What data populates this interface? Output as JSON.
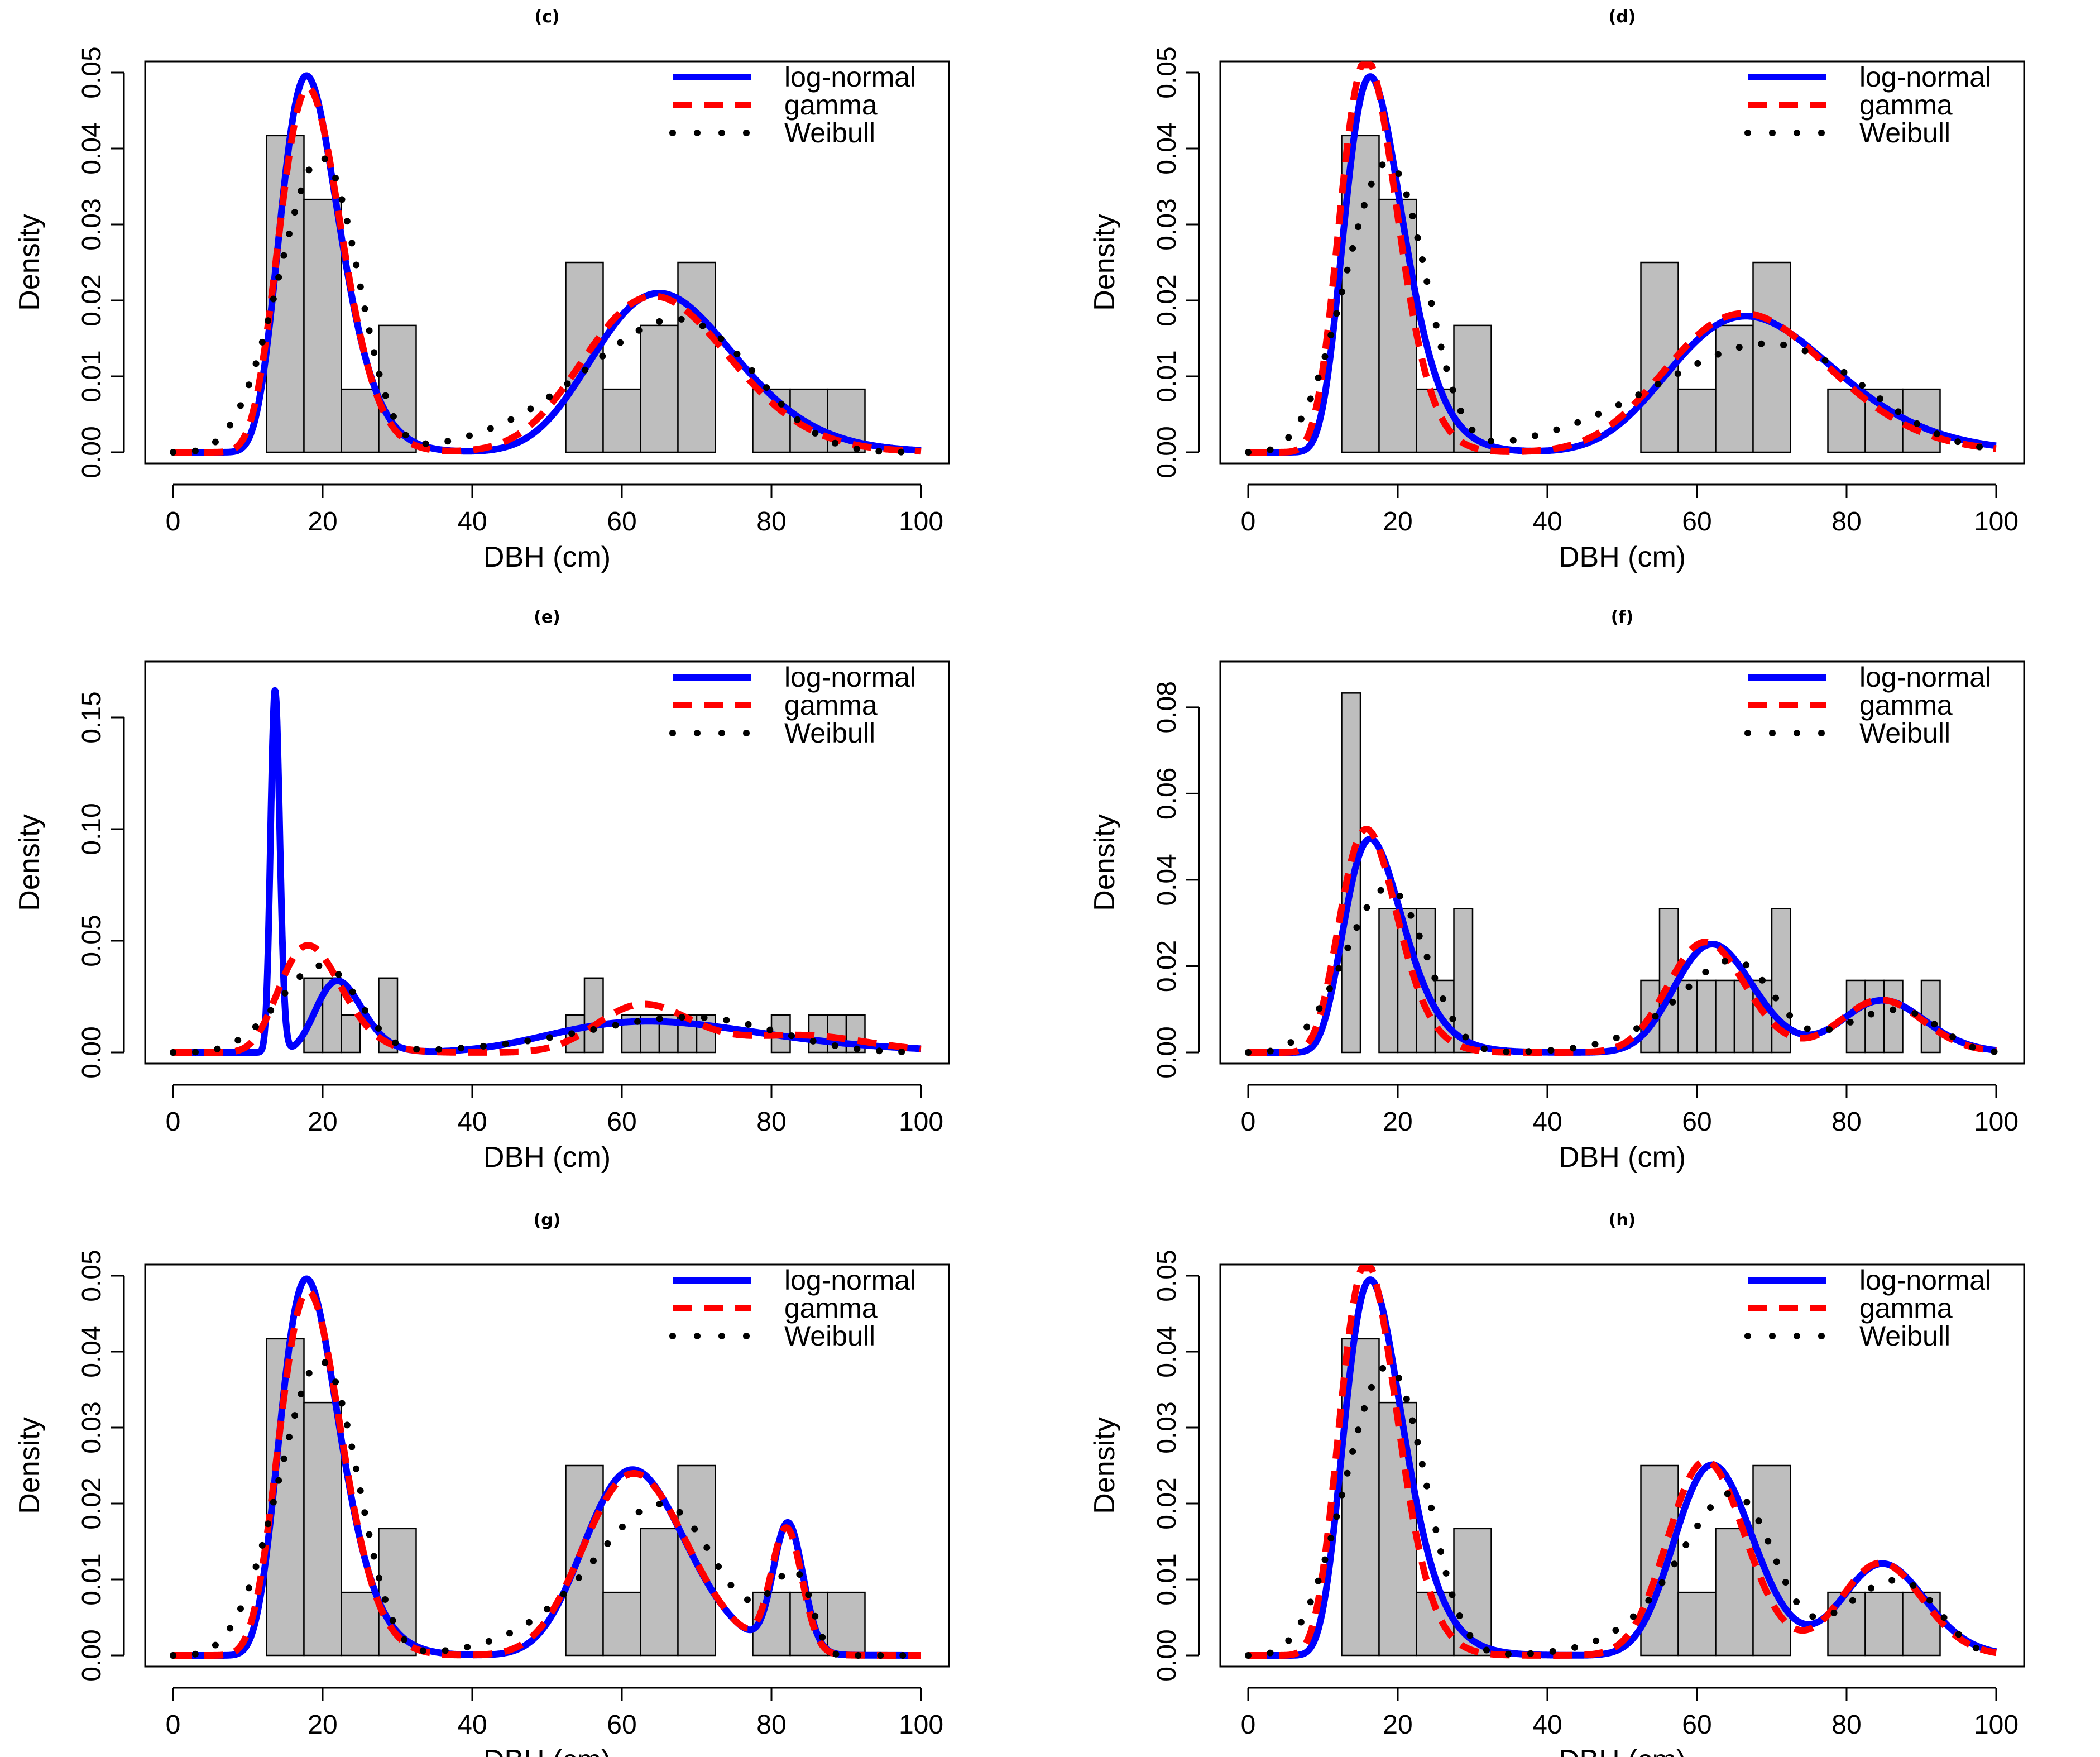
{
  "chart_data": [
    {
      "panel": "c",
      "type": "histogram-with-density-curves",
      "title": "(c)",
      "xlabel": "DBH (cm)",
      "ylabel": "Density",
      "xlim": [
        0,
        100
      ],
      "ylim": [
        0,
        0.05
      ],
      "xticks": [
        "0",
        "20",
        "40",
        "60",
        "80",
        "100"
      ],
      "yticks": [
        "0.00",
        "0.01",
        "0.02",
        "0.03",
        "0.04",
        "0.05"
      ],
      "bins": [
        [
          12.5,
          17.5,
          0.0417
        ],
        [
          17.5,
          22.5,
          0.0333
        ],
        [
          22.5,
          27.5,
          0.0083
        ],
        [
          27.5,
          32.5,
          0.0167
        ],
        [
          52.5,
          57.5,
          0.025
        ],
        [
          57.5,
          62.5,
          0.0083
        ],
        [
          62.5,
          67.5,
          0.0167
        ],
        [
          67.5,
          72.5,
          0.025
        ],
        [
          77.5,
          82.5,
          0.0083
        ],
        [
          82.5,
          87.5,
          0.0083
        ],
        [
          87.5,
          92.5,
          0.0083
        ]
      ],
      "series": [
        {
          "name": "log-normal",
          "components": [
            {
              "w": 0.5,
              "dist": "lognormal",
              "mu": 2.93,
              "sigma": 0.22
            },
            {
              "w": 0.5,
              "dist": "lognormal",
              "mu": 4.195,
              "sigma": 0.145
            }
          ]
        },
        {
          "name": "gamma",
          "components": [
            {
              "w": 0.5,
              "dist": "gamma",
              "k": 20,
              "theta": 0.95
            },
            {
              "w": 0.5,
              "dist": "gamma",
              "k": 45,
              "theta": 1.46
            }
          ]
        },
        {
          "name": "Weibull",
          "components": [
            {
              "w": 0.5,
              "dist": "weibull",
              "k": 4.3,
              "lambda": 21
            },
            {
              "w": 0.5,
              "dist": "weibull",
              "k": 6.5,
              "lambda": 69
            }
          ]
        }
      ],
      "legend": [
        "log-normal",
        "gamma",
        "Weibull"
      ]
    },
    {
      "panel": "d",
      "type": "histogram-with-density-curves",
      "title": "(d)",
      "xlabel": "DBH (cm)",
      "ylabel": "Density",
      "xlim": [
        0,
        100
      ],
      "ylim": [
        0,
        0.05
      ],
      "xticks": [
        "0",
        "20",
        "40",
        "60",
        "80",
        "100"
      ],
      "yticks": [
        "0.00",
        "0.01",
        "0.02",
        "0.03",
        "0.04",
        "0.05"
      ],
      "bins": [
        [
          12.5,
          17.5,
          0.0417
        ],
        [
          17.5,
          22.5,
          0.0333
        ],
        [
          22.5,
          27.5,
          0.0083
        ],
        [
          27.5,
          32.5,
          0.0167
        ],
        [
          52.5,
          57.5,
          0.025
        ],
        [
          57.5,
          62.5,
          0.0083
        ],
        [
          62.5,
          67.5,
          0.0167
        ],
        [
          67.5,
          72.5,
          0.025
        ],
        [
          77.5,
          82.5,
          0.0083
        ],
        [
          82.5,
          87.5,
          0.0083
        ],
        [
          87.5,
          92.5,
          0.0083
        ]
      ],
      "series": [
        {
          "name": "log-normal",
          "components": [
            {
              "w": 0.5,
              "dist": "lognormal",
              "mu": 2.85,
              "sigma": 0.24
            },
            {
              "w": 0.5,
              "dist": "lognormal",
              "mu": 4.225,
              "sigma": 0.165
            }
          ]
        },
        {
          "name": "gamma",
          "components": [
            {
              "w": 0.5,
              "dist": "gamma",
              "k": 18,
              "theta": 0.93
            },
            {
              "w": 0.5,
              "dist": "gamma",
              "k": 38,
              "theta": 1.79
            }
          ]
        },
        {
          "name": "Weibull",
          "components": [
            {
              "w": 0.5,
              "dist": "weibull",
              "k": 4.0,
              "lambda": 20
            },
            {
              "w": 0.5,
              "dist": "weibull",
              "k": 5.5,
              "lambda": 72
            }
          ]
        }
      ],
      "legend": [
        "log-normal",
        "gamma",
        "Weibull"
      ]
    },
    {
      "panel": "e",
      "type": "histogram-with-density-curves",
      "title": "(e)",
      "xlabel": "DBH (cm)",
      "ylabel": "Density",
      "xlim": [
        0,
        100
      ],
      "ylim": [
        0,
        0.17
      ],
      "xticks": [
        "0",
        "20",
        "40",
        "60",
        "80",
        "100"
      ],
      "yticks": [
        "0.00",
        "0.05",
        "0.10",
        "0.15"
      ],
      "bins": [
        [
          17.5,
          20,
          0.0333
        ],
        [
          20,
          22.5,
          0.0333
        ],
        [
          22.5,
          25,
          0.0167
        ],
        [
          27.5,
          30,
          0.0333
        ],
        [
          52.5,
          55,
          0.0167
        ],
        [
          55,
          57.5,
          0.0333
        ],
        [
          60,
          62.5,
          0.0167
        ],
        [
          62.5,
          65,
          0.0167
        ],
        [
          65,
          67.5,
          0.0167
        ],
        [
          67.5,
          70,
          0.0167
        ],
        [
          70,
          72.5,
          0.0167
        ],
        [
          80,
          82.5,
          0.0167
        ],
        [
          85,
          87.5,
          0.0167
        ],
        [
          87.5,
          90,
          0.0167
        ],
        [
          90,
          92.5,
          0.0167
        ]
      ],
      "series": [
        {
          "name": "log-normal",
          "components": [
            {
              "w": 0.25,
              "dist": "lognormal",
              "mu": 2.615,
              "sigma": 0.045
            },
            {
              "w": 0.25,
              "dist": "lognormal",
              "mu": 3.11,
              "sigma": 0.14
            },
            {
              "w": 0.5,
              "dist": "lognormal",
              "mu": 4.2,
              "sigma": 0.22
            }
          ]
        },
        {
          "name": "gamma",
          "components": [
            {
              "w": 0.5,
              "dist": "gamma",
              "k": 20,
              "theta": 0.95
            },
            {
              "w": 0.34,
              "dist": "gamma",
              "k": 100,
              "theta": 0.635
            },
            {
              "w": 0.16,
              "dist": "gamma",
              "k": 100,
              "theta": 0.85
            }
          ]
        },
        {
          "name": "Weibull",
          "components": [
            {
              "w": 0.5,
              "dist": "weibull",
              "k": 4.3,
              "lambda": 21
            },
            {
              "w": 0.5,
              "dist": "weibull",
              "k": 6.0,
              "lambda": 71
            }
          ]
        }
      ],
      "legend": [
        "log-normal",
        "gamma",
        "Weibull"
      ]
    },
    {
      "panel": "f",
      "type": "histogram-with-density-curves",
      "title": "(f)",
      "xlabel": "DBH (cm)",
      "ylabel": "Density",
      "xlim": [
        0,
        100
      ],
      "ylim": [
        0,
        0.088
      ],
      "xticks": [
        "0",
        "20",
        "40",
        "60",
        "80",
        "100"
      ],
      "yticks": [
        "0.00",
        "0.02",
        "0.04",
        "0.06",
        "0.08"
      ],
      "bins": [
        [
          12.5,
          15,
          0.0833
        ],
        [
          17.5,
          20,
          0.0333
        ],
        [
          20,
          22.5,
          0.0333
        ],
        [
          22.5,
          25,
          0.0333
        ],
        [
          25,
          27.5,
          0.0167
        ],
        [
          27.5,
          30,
          0.0333
        ],
        [
          52.5,
          55,
          0.0167
        ],
        [
          55,
          57.5,
          0.0333
        ],
        [
          57.5,
          60,
          0.0167
        ],
        [
          60,
          62.5,
          0.0167
        ],
        [
          62.5,
          65,
          0.0167
        ],
        [
          65,
          67.5,
          0.0167
        ],
        [
          67.5,
          70,
          0.0167
        ],
        [
          70,
          72.5,
          0.0333
        ],
        [
          80,
          82.5,
          0.0167
        ],
        [
          82.5,
          85,
          0.0167
        ],
        [
          85,
          87.5,
          0.0167
        ],
        [
          90,
          92.5,
          0.0167
        ]
      ],
      "series": [
        {
          "name": "log-normal",
          "components": [
            {
              "w": 0.5,
              "dist": "lognormal",
              "mu": 2.85,
              "sigma": 0.24
            },
            {
              "w": 0.333,
              "dist": "lognormal",
              "mu": 4.135,
              "sigma": 0.085
            },
            {
              "w": 0.167,
              "dist": "lognormal",
              "mu": 4.445,
              "sigma": 0.065
            }
          ]
        },
        {
          "name": "gamma",
          "components": [
            {
              "w": 0.5,
              "dist": "gamma",
              "k": 18,
              "theta": 0.93
            },
            {
              "w": 0.333,
              "dist": "gamma",
              "k": 140,
              "theta": 0.44
            },
            {
              "w": 0.167,
              "dist": "gamma",
              "k": 240,
              "theta": 0.354
            }
          ]
        },
        {
          "name": "Weibull",
          "components": [
            {
              "w": 0.5,
              "dist": "weibull",
              "k": 4.0,
              "lambda": 20
            },
            {
              "w": 0.333,
              "dist": "weibull",
              "k": 11,
              "lambda": 65
            },
            {
              "w": 0.167,
              "dist": "weibull",
              "k": 14,
              "lambda": 87
            }
          ]
        }
      ],
      "legend": [
        "log-normal",
        "gamma",
        "Weibull"
      ]
    },
    {
      "panel": "g",
      "type": "histogram-with-density-curves",
      "title": "(g)",
      "xlabel": "DBH (cm)",
      "ylabel": "Density",
      "xlim": [
        0,
        100
      ],
      "ylim": [
        0,
        0.05
      ],
      "xticks": [
        "0",
        "20",
        "40",
        "60",
        "80",
        "100"
      ],
      "yticks": [
        "0.00",
        "0.01",
        "0.02",
        "0.03",
        "0.04",
        "0.05"
      ],
      "bins": [
        [
          12.5,
          17.5,
          0.0417
        ],
        [
          17.5,
          22.5,
          0.0333
        ],
        [
          22.5,
          27.5,
          0.0083
        ],
        [
          27.5,
          32.5,
          0.0167
        ],
        [
          52.5,
          57.5,
          0.025
        ],
        [
          57.5,
          62.5,
          0.0083
        ],
        [
          62.5,
          67.5,
          0.0167
        ],
        [
          67.5,
          72.5,
          0.025
        ],
        [
          77.5,
          82.5,
          0.0083
        ],
        [
          82.5,
          87.5,
          0.0083
        ],
        [
          87.5,
          92.5,
          0.0083
        ]
      ],
      "series": [
        {
          "name": "log-normal",
          "components": [
            {
              "w": 0.5,
              "dist": "lognormal",
              "mu": 2.93,
              "sigma": 0.22
            },
            {
              "w": 0.417,
              "dist": "lognormal",
              "mu": 4.13,
              "sigma": 0.11
            },
            {
              "w": 0.083,
              "dist": "lognormal",
              "mu": 4.41,
              "sigma": 0.024
            }
          ]
        },
        {
          "name": "gamma",
          "components": [
            {
              "w": 0.5,
              "dist": "gamma",
              "k": 20,
              "theta": 0.95
            },
            {
              "w": 0.417,
              "dist": "gamma",
              "k": 80,
              "theta": 0.78
            },
            {
              "w": 0.083,
              "dist": "gamma",
              "k": 1600,
              "theta": 0.0513
            }
          ]
        },
        {
          "name": "Weibull",
          "components": [
            {
              "w": 0.5,
              "dist": "weibull",
              "k": 4.3,
              "lambda": 21
            },
            {
              "w": 0.417,
              "dist": "weibull",
              "k": 8.5,
              "lambda": 66
            },
            {
              "w": 0.083,
              "dist": "weibull",
              "k": 30,
              "lambda": 83
            }
          ]
        }
      ],
      "legend": [
        "log-normal",
        "gamma",
        "Weibull"
      ]
    },
    {
      "panel": "h",
      "type": "histogram-with-density-curves",
      "title": "(h)",
      "xlabel": "DBH (cm)",
      "ylabel": "Density",
      "xlim": [
        0,
        100
      ],
      "ylim": [
        0,
        0.05
      ],
      "xticks": [
        "0",
        "20",
        "40",
        "60",
        "80",
        "100"
      ],
      "yticks": [
        "0.00",
        "0.01",
        "0.02",
        "0.03",
        "0.04",
        "0.05"
      ],
      "bins": [
        [
          12.5,
          17.5,
          0.0417
        ],
        [
          17.5,
          22.5,
          0.0333
        ],
        [
          22.5,
          27.5,
          0.0083
        ],
        [
          27.5,
          32.5,
          0.0167
        ],
        [
          52.5,
          57.5,
          0.025
        ],
        [
          57.5,
          62.5,
          0.0083
        ],
        [
          62.5,
          67.5,
          0.0167
        ],
        [
          67.5,
          72.5,
          0.025
        ],
        [
          77.5,
          82.5,
          0.0083
        ],
        [
          82.5,
          87.5,
          0.0083
        ],
        [
          87.5,
          92.5,
          0.0083
        ]
      ],
      "series": [
        {
          "name": "log-normal",
          "components": [
            {
              "w": 0.5,
              "dist": "lognormal",
              "mu": 2.85,
              "sigma": 0.24
            },
            {
              "w": 0.333,
              "dist": "lognormal",
              "mu": 4.135,
              "sigma": 0.085
            },
            {
              "w": 0.167,
              "dist": "lognormal",
              "mu": 4.445,
              "sigma": 0.065
            }
          ]
        },
        {
          "name": "gamma",
          "components": [
            {
              "w": 0.5,
              "dist": "gamma",
              "k": 18,
              "theta": 0.93
            },
            {
              "w": 0.333,
              "dist": "gamma",
              "k": 140,
              "theta": 0.44
            },
            {
              "w": 0.167,
              "dist": "gamma",
              "k": 240,
              "theta": 0.354
            }
          ]
        },
        {
          "name": "Weibull",
          "components": [
            {
              "w": 0.5,
              "dist": "weibull",
              "k": 4.0,
              "lambda": 20
            },
            {
              "w": 0.333,
              "dist": "weibull",
              "k": 11,
              "lambda": 65
            },
            {
              "w": 0.167,
              "dist": "weibull",
              "k": 14,
              "lambda": 87
            }
          ]
        }
      ],
      "legend": [
        "log-normal",
        "gamma",
        "Weibull"
      ]
    }
  ],
  "colors": {
    "log-normal": "#0000ff",
    "gamma": "#ff0000",
    "Weibull": "#000000",
    "bar_fill": "#bebebe",
    "bar_stroke": "#000000"
  }
}
